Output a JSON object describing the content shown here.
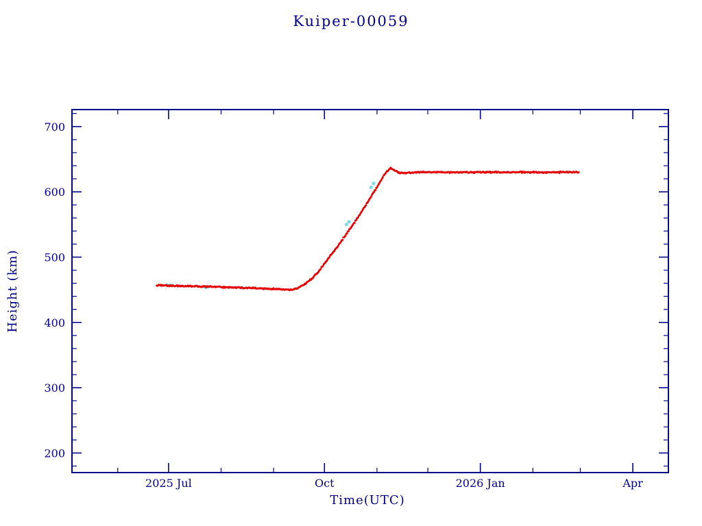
{
  "title": "Kuiper-00059",
  "colors": {
    "axis": "#00008b",
    "text": "#00008b",
    "series_red": "#e60000",
    "underlay_cyan": "#7fd8e8",
    "background": "#ffffff"
  },
  "chart_data": {
    "type": "scatter",
    "title": "Kuiper-00059",
    "xlabel": "Time(UTC)",
    "ylabel": "Height (km)",
    "x_unit": "days since 2025-05-05",
    "xlim_days": [
      0,
      352
    ],
    "ylim": [
      170,
      726
    ],
    "y_ticks": [
      200,
      300,
      400,
      500,
      600,
      700
    ],
    "y_minor_step": 20,
    "x_ticks": [
      {
        "label": "2025 Jul",
        "day": 57
      },
      {
        "label": "Oct",
        "day": 149
      },
      {
        "label": "2026 Jan",
        "day": 241
      },
      {
        "label": "Apr",
        "day": 331
      }
    ],
    "x_minor_days": [
      27,
      88,
      119,
      180,
      210,
      272,
      300
    ],
    "grid": false,
    "legend": "none",
    "series": [
      {
        "name": "height-km-red",
        "color": "#e60000",
        "style": "noisy-dots",
        "control_points": [
          [
            50,
            457
          ],
          [
            58,
            456.2
          ],
          [
            68,
            455.5
          ],
          [
            80,
            454.8
          ],
          [
            92,
            453.8
          ],
          [
            104,
            452.8
          ],
          [
            114,
            451.8
          ],
          [
            122,
            450.8
          ],
          [
            127,
            450.2
          ],
          [
            130,
            450
          ],
          [
            133,
            452
          ],
          [
            137,
            458
          ],
          [
            141,
            466
          ],
          [
            145,
            476
          ],
          [
            149,
            490
          ],
          [
            153,
            504
          ],
          [
            157,
            517
          ],
          [
            161,
            532
          ],
          [
            165,
            547
          ],
          [
            169,
            562
          ],
          [
            173,
            578
          ],
          [
            177,
            595
          ],
          [
            180,
            607
          ],
          [
            182,
            616
          ],
          [
            184,
            625
          ],
          [
            186,
            632
          ],
          [
            188,
            636
          ],
          [
            190,
            634
          ],
          [
            193,
            629
          ],
          [
            196,
            628.5
          ],
          [
            200,
            629.5
          ],
          [
            205,
            630
          ],
          [
            240,
            630
          ],
          [
            270,
            630
          ],
          [
            299,
            630
          ]
        ]
      }
    ],
    "underlay_points": {
      "name": "height-km-cyan",
      "color": "#7fd8e8",
      "points": [
        [
          56,
          457.5
        ],
        [
          57.5,
          456.5
        ],
        [
          59,
          457
        ],
        [
          79,
          453.8
        ],
        [
          80.5,
          454.5
        ],
        [
          162,
          550
        ],
        [
          163.5,
          554
        ],
        [
          176.5,
          607
        ],
        [
          178,
          613
        ]
      ]
    }
  }
}
